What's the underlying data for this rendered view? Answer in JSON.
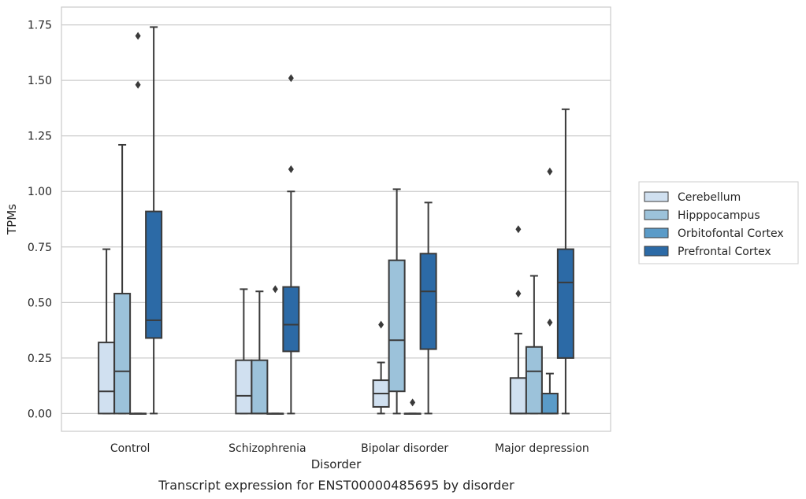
{
  "chart_data": {
    "type": "box",
    "title": "",
    "caption": "Transcript expression for ENST00000485695 by disorder",
    "xlabel": "Disorder",
    "ylabel": "TPMs",
    "ylim": [
      -0.08,
      1.83
    ],
    "yticks": [
      0.0,
      0.25,
      0.5,
      0.75,
      1.0,
      1.25,
      1.5,
      1.75
    ],
    "ytick_labels": [
      "0.00",
      "0.25",
      "0.50",
      "0.75",
      "1.00",
      "1.25",
      "1.50",
      "1.75"
    ],
    "grid": "horizontal",
    "legend_position": "right",
    "categories": [
      "Control",
      "Schizophrenia",
      "Bipolar disorder",
      "Major depression"
    ],
    "series": [
      {
        "name": "Cerebellum",
        "color": "#d0e0f0",
        "boxes": [
          {
            "min": 0.0,
            "q1": 0.0,
            "median": 0.1,
            "q3": 0.32,
            "max": 0.74,
            "outliers": []
          },
          {
            "min": 0.0,
            "q1": 0.0,
            "median": 0.08,
            "q3": 0.24,
            "max": 0.56,
            "outliers": []
          },
          {
            "min": 0.0,
            "q1": 0.03,
            "median": 0.09,
            "q3": 0.15,
            "max": 0.23,
            "outliers": [
              0.4
            ]
          },
          {
            "min": 0.0,
            "q1": 0.0,
            "median": 0.0,
            "q3": 0.16,
            "max": 0.36,
            "outliers": [
              0.54,
              0.83
            ]
          }
        ]
      },
      {
        "name": "Hipppocampus",
        "color": "#9cc2da",
        "boxes": [
          {
            "min": 0.0,
            "q1": 0.0,
            "median": 0.19,
            "q3": 0.54,
            "max": 1.21,
            "outliers": []
          },
          {
            "min": 0.0,
            "q1": 0.0,
            "median": 0.0,
            "q3": 0.24,
            "max": 0.55,
            "outliers": []
          },
          {
            "min": 0.0,
            "q1": 0.1,
            "median": 0.33,
            "q3": 0.69,
            "max": 1.01,
            "outliers": []
          },
          {
            "min": 0.0,
            "q1": 0.0,
            "median": 0.19,
            "q3": 0.3,
            "max": 0.62,
            "outliers": []
          }
        ]
      },
      {
        "name": "Orbitofontal Cortex",
        "color": "#5a9bc8",
        "boxes": [
          {
            "min": 0.0,
            "q1": 0.0,
            "median": 0.0,
            "q3": 0.0,
            "max": 0.0,
            "outliers": [
              1.48,
              1.7
            ]
          },
          {
            "min": 0.0,
            "q1": 0.0,
            "median": 0.0,
            "q3": 0.0,
            "max": 0.0,
            "outliers": [
              0.56
            ]
          },
          {
            "min": 0.0,
            "q1": 0.0,
            "median": 0.0,
            "q3": 0.0,
            "max": 0.0,
            "outliers": [
              0.05
            ]
          },
          {
            "min": 0.0,
            "q1": 0.0,
            "median": 0.0,
            "q3": 0.09,
            "max": 0.18,
            "outliers": [
              0.41,
              1.09
            ]
          }
        ]
      },
      {
        "name": "Prefrontal Cortex",
        "color": "#2c6aa6",
        "boxes": [
          {
            "min": 0.0,
            "q1": 0.34,
            "median": 0.42,
            "q3": 0.91,
            "max": 1.74,
            "outliers": []
          },
          {
            "min": 0.0,
            "q1": 0.28,
            "median": 0.4,
            "q3": 0.57,
            "max": 1.0,
            "outliers": [
              1.1,
              1.51
            ]
          },
          {
            "min": 0.0,
            "q1": 0.29,
            "median": 0.55,
            "q3": 0.72,
            "max": 0.95,
            "outliers": []
          },
          {
            "min": 0.0,
            "q1": 0.25,
            "median": 0.59,
            "q3": 0.74,
            "max": 1.37,
            "outliers": []
          }
        ]
      }
    ]
  }
}
